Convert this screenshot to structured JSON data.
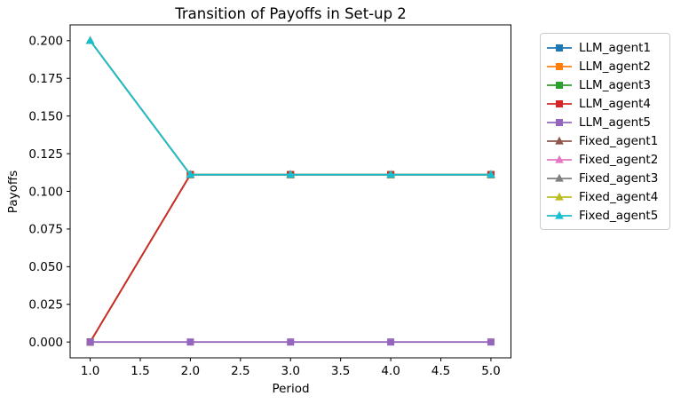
{
  "figure": {
    "colors": {
      "background": "#ffffff",
      "axes_frame": "#000000",
      "text": "#000000",
      "legend_border": "#cccccc"
    }
  },
  "chart_data": {
    "type": "line",
    "title": "Transition of Payoffs in Set-up 2",
    "xlabel": "Period",
    "ylabel": "Payoffs",
    "x": [
      1,
      2,
      3,
      4,
      5
    ],
    "xlim": [
      0.8,
      5.2
    ],
    "ylim": [
      -0.0105,
      0.2105
    ],
    "x_tick_labels": [
      "1.0",
      "1.5",
      "2.0",
      "2.5",
      "3.0",
      "3.5",
      "4.0",
      "4.5",
      "5.0"
    ],
    "y_tick_labels": [
      "0.000",
      "0.025",
      "0.050",
      "0.075",
      "0.100",
      "0.125",
      "0.150",
      "0.175",
      "0.200"
    ],
    "grid": false,
    "legend_position": "outside-right",
    "series": [
      {
        "name": "LLM_agent1",
        "color": "#1f77b4",
        "marker": "square",
        "values": [
          0.0,
          0.1111,
          0.1111,
          0.1111,
          0.1111
        ]
      },
      {
        "name": "LLM_agent2",
        "color": "#ff7f0e",
        "marker": "square",
        "values": [
          0.0,
          0.1111,
          0.1111,
          0.1111,
          0.1111
        ]
      },
      {
        "name": "LLM_agent3",
        "color": "#2ca02c",
        "marker": "square",
        "values": [
          0.0,
          0.1111,
          0.1111,
          0.1111,
          0.1111
        ]
      },
      {
        "name": "LLM_agent4",
        "color": "#d62728",
        "marker": "square",
        "values": [
          0.0,
          0.1111,
          0.1111,
          0.1111,
          0.1111
        ]
      },
      {
        "name": "LLM_agent5",
        "color": "#9467bd",
        "marker": "square",
        "values": [
          0.0,
          0.0,
          0.0,
          0.0,
          0.0
        ]
      },
      {
        "name": "Fixed_agent1",
        "color": "#8c564b",
        "marker": "triangle",
        "values": [
          0.2,
          0.1111,
          0.1111,
          0.1111,
          0.1111
        ]
      },
      {
        "name": "Fixed_agent2",
        "color": "#e377c2",
        "marker": "triangle",
        "values": [
          0.2,
          0.1111,
          0.1111,
          0.1111,
          0.1111
        ]
      },
      {
        "name": "Fixed_agent3",
        "color": "#7f7f7f",
        "marker": "triangle",
        "values": [
          0.2,
          0.1111,
          0.1111,
          0.1111,
          0.1111
        ]
      },
      {
        "name": "Fixed_agent4",
        "color": "#bcbd22",
        "marker": "triangle",
        "values": [
          0.2,
          0.1111,
          0.1111,
          0.1111,
          0.1111
        ]
      },
      {
        "name": "Fixed_agent5",
        "color": "#17becf",
        "marker": "triangle",
        "values": [
          0.2,
          0.1111,
          0.1111,
          0.1111,
          0.1111
        ]
      }
    ]
  }
}
